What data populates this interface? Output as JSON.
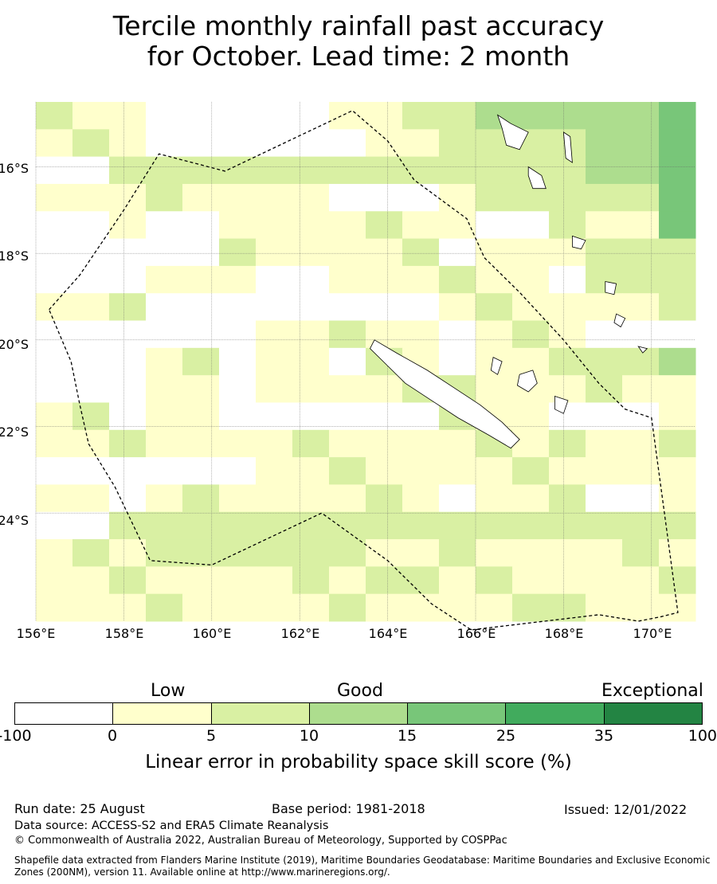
{
  "title": {
    "line1": "Tercile monthly rainfall past accuracy",
    "line2": "for October. Lead time: 2 month"
  },
  "map": {
    "lon_range": [
      156,
      171
    ],
    "lat_range": [
      -26.5,
      -14.5
    ],
    "x_ticks": [
      "156°E",
      "158°E",
      "160°E",
      "162°E",
      "164°E",
      "166°E",
      "168°E",
      "170°E"
    ],
    "y_ticks": [
      "16°S",
      "18°S",
      "20°S",
      "22°S",
      "24°S"
    ],
    "grid": true,
    "eez_boundary_style": "dashed",
    "skill_cells_rows_north_to_south": [
      "110001123334",
      "110000122234",
      "022222222234",
      "111110012224",
      "010111110114",
      "000111101122",
      "001101111022",
      "110000011111",
      "000011101100",
      "001010101123",
      "001011121111",
      "101000011001",
      "111111111211",
      "000011111111",
      "101111101101",
      "022222222222",
      "112222111111",
      "111111211111",
      "111111111211"
    ]
  },
  "colorbar": {
    "colors": [
      "#ffffff",
      "#ffffcc",
      "#d9f0a3",
      "#addd8e",
      "#78c679",
      "#41ab5d",
      "#238443"
    ],
    "ticks": [
      "-100",
      "0",
      "5",
      "10",
      "15",
      "25",
      "35",
      "100"
    ],
    "categories": [
      "Low",
      "Good",
      "Exceptional"
    ],
    "label": "Linear error in probability space skill score (%)"
  },
  "footer": {
    "run_date": "Run date: 25 August",
    "base_period": "Base period: 1981-2018",
    "issued": "Issued: 12/01/2022",
    "data_source": "Data source: ACCESS-S2 and ERA5 Climate Reanalysis",
    "copyright": "© Commonwealth of Australia 2022, Australian Bureau of Meteorology, Supported by COSPPac",
    "shapefile": "Shapefile data extracted from Flanders Marine Institute (2019), Maritime Boundaries Geodatabase: Maritime Boundaries and Exclusive Economic Zones (200NM), version 11. Available online at http://www.marineregions.org/."
  }
}
